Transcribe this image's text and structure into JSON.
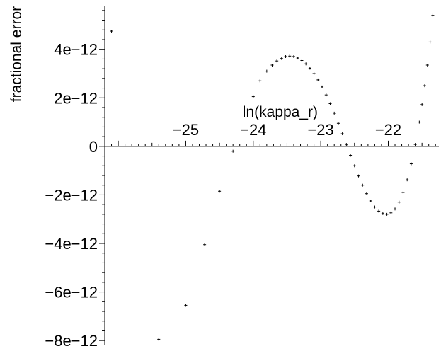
{
  "chart_data": {
    "type": "scatter",
    "xlabel": "ln(kappa_r)",
    "ylabel": "fractional error",
    "xlim": [
      -26.2,
      -21.25
    ],
    "ylim": [
      -8.2e-12,
      5.8e-12
    ],
    "x_ticks": [
      {
        "value": -25,
        "label": "−25"
      },
      {
        "value": -24,
        "label": "−24"
      },
      {
        "value": -23,
        "label": "−23"
      },
      {
        "value": -22,
        "label": "−22"
      }
    ],
    "y_ticks": [
      {
        "value": 4e-12,
        "label": "4e−12"
      },
      {
        "value": 2e-12,
        "label": "2e−12"
      },
      {
        "value": 0,
        "label": "0"
      },
      {
        "value": -2e-12,
        "label": "−2e−12"
      },
      {
        "value": -4e-12,
        "label": "−4e−12"
      },
      {
        "value": -6e-12,
        "label": "−6e−12"
      },
      {
        "value": -8e-12,
        "label": "−8e−12"
      }
    ],
    "marker": "+",
    "color": "#000000",
    "grid": false,
    "series": [
      {
        "points": [
          {
            "x": -26.1,
            "y": 4.75e-12
          },
          {
            "x": -25.4,
            "y": -7.95e-12
          },
          {
            "x": -25.0,
            "y": -6.55e-12
          },
          {
            "x": -24.72,
            "y": -4.05e-12
          },
          {
            "x": -24.5,
            "y": -1.85e-12
          },
          {
            "x": -24.3,
            "y": -2e-13
          },
          {
            "x": -24.0,
            "y": 2.05e-12
          },
          {
            "x": -23.9,
            "y": 2.7e-12
          },
          {
            "x": -23.8,
            "y": 3.1e-12
          },
          {
            "x": -23.72,
            "y": 3.35e-12
          },
          {
            "x": -23.65,
            "y": 3.52e-12
          },
          {
            "x": -23.58,
            "y": 3.62e-12
          },
          {
            "x": -23.52,
            "y": 3.7e-12
          },
          {
            "x": -23.46,
            "y": 3.72e-12
          },
          {
            "x": -23.4,
            "y": 3.7e-12
          },
          {
            "x": -23.34,
            "y": 3.64e-12
          },
          {
            "x": -23.28,
            "y": 3.54e-12
          },
          {
            "x": -23.22,
            "y": 3.4e-12
          },
          {
            "x": -23.16,
            "y": 3.22e-12
          },
          {
            "x": -23.1,
            "y": 3e-12
          },
          {
            "x": -23.04,
            "y": 2.74e-12
          },
          {
            "x": -22.98,
            "y": 2.45e-12
          },
          {
            "x": -22.92,
            "y": 2.12e-12
          },
          {
            "x": -22.86,
            "y": 1.76e-12
          },
          {
            "x": -22.8,
            "y": 1.37e-12
          },
          {
            "x": -22.74,
            "y": 9.5e-13
          },
          {
            "x": -22.68,
            "y": 5.2e-13
          },
          {
            "x": -22.62,
            "y": 8e-14
          },
          {
            "x": -22.56,
            "y": -3.7e-13
          },
          {
            "x": -22.5,
            "y": -8e-13
          },
          {
            "x": -22.44,
            "y": -1.22e-12
          },
          {
            "x": -22.38,
            "y": -1.6e-12
          },
          {
            "x": -22.32,
            "y": -1.95e-12
          },
          {
            "x": -22.26,
            "y": -2.25e-12
          },
          {
            "x": -22.2,
            "y": -2.5e-12
          },
          {
            "x": -22.14,
            "y": -2.67e-12
          },
          {
            "x": -22.08,
            "y": -2.77e-12
          },
          {
            "x": -22.02,
            "y": -2.8e-12
          },
          {
            "x": -21.96,
            "y": -2.74e-12
          },
          {
            "x": -21.9,
            "y": -2.58e-12
          },
          {
            "x": -21.84,
            "y": -2.3e-12
          },
          {
            "x": -21.78,
            "y": -1.9e-12
          },
          {
            "x": -21.72,
            "y": -1.38e-12
          },
          {
            "x": -21.66,
            "y": -7.2e-13
          },
          {
            "x": -21.6,
            "y": 8e-14
          },
          {
            "x": -21.54,
            "y": 1e-12
          },
          {
            "x": -21.5,
            "y": 1.72e-12
          },
          {
            "x": -21.46,
            "y": 2.5e-12
          },
          {
            "x": -21.42,
            "y": 3.35e-12
          },
          {
            "x": -21.38,
            "y": 4.3e-12
          },
          {
            "x": -21.34,
            "y": 5.4e-12
          }
        ]
      }
    ]
  }
}
